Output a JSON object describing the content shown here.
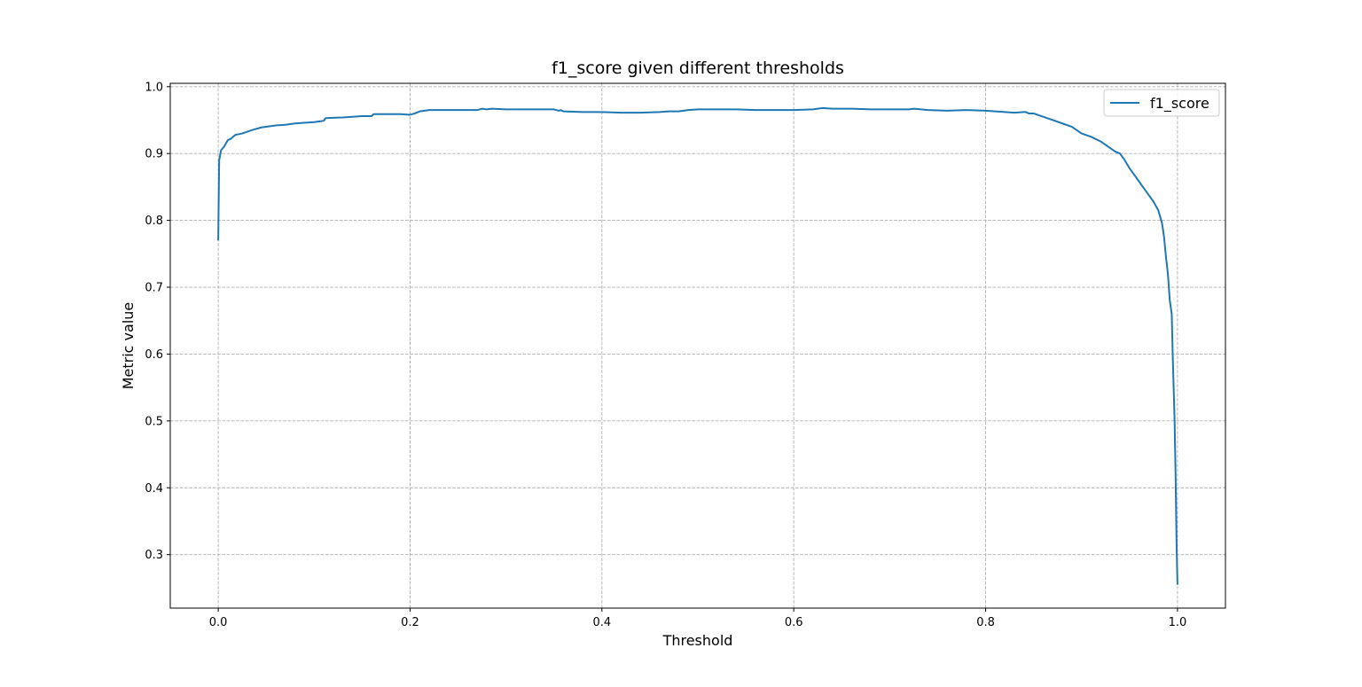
{
  "chart_data": {
    "type": "line",
    "title": "f1_score given different thresholds",
    "xlabel": "Threshold",
    "ylabel": "Metric value",
    "xlim": [
      -0.05,
      1.05
    ],
    "ylim": [
      0.22,
      1.005
    ],
    "xticks": [
      0.0,
      0.2,
      0.4,
      0.6,
      0.8,
      1.0
    ],
    "xtick_labels": [
      "0.0",
      "0.2",
      "0.4",
      "0.6",
      "0.8",
      "1.0"
    ],
    "yticks": [
      0.3,
      0.4,
      0.5,
      0.6,
      0.7,
      0.8,
      0.9,
      1.0
    ],
    "ytick_labels": [
      "0.3",
      "0.4",
      "0.5",
      "0.6",
      "0.7",
      "0.8",
      "0.9",
      "1.0"
    ],
    "grid": true,
    "legend_position": "top-right",
    "series": [
      {
        "name": "f1_score",
        "color": "#1f77b4",
        "x": [
          0.0,
          0.001,
          0.003,
          0.006,
          0.01,
          0.013,
          0.018,
          0.025,
          0.035,
          0.045,
          0.06,
          0.07,
          0.08,
          0.09,
          0.1,
          0.11,
          0.112,
          0.13,
          0.15,
          0.16,
          0.162,
          0.17,
          0.19,
          0.2,
          0.205,
          0.21,
          0.215,
          0.22,
          0.25,
          0.27,
          0.275,
          0.28,
          0.285,
          0.3,
          0.32,
          0.34,
          0.35,
          0.355,
          0.357,
          0.36,
          0.38,
          0.4,
          0.42,
          0.44,
          0.46,
          0.47,
          0.48,
          0.49,
          0.5,
          0.52,
          0.54,
          0.56,
          0.58,
          0.6,
          0.62,
          0.63,
          0.64,
          0.66,
          0.68,
          0.7,
          0.72,
          0.725,
          0.74,
          0.76,
          0.78,
          0.8,
          0.81,
          0.82,
          0.83,
          0.84,
          0.842,
          0.845,
          0.85,
          0.86,
          0.87,
          0.88,
          0.89,
          0.9,
          0.91,
          0.92,
          0.93,
          0.935,
          0.94,
          0.945,
          0.95,
          0.955,
          0.96,
          0.965,
          0.97,
          0.975,
          0.98,
          0.982,
          0.984,
          0.986,
          0.988,
          0.99,
          0.992,
          0.994,
          0.995,
          0.996,
          0.997,
          0.998,
          0.999,
          1.0
        ],
        "y": [
          0.77,
          0.89,
          0.905,
          0.91,
          0.92,
          0.922,
          0.928,
          0.93,
          0.935,
          0.939,
          0.942,
          0.943,
          0.945,
          0.946,
          0.947,
          0.949,
          0.953,
          0.954,
          0.956,
          0.956,
          0.959,
          0.959,
          0.959,
          0.958,
          0.96,
          0.963,
          0.964,
          0.965,
          0.965,
          0.965,
          0.967,
          0.966,
          0.967,
          0.966,
          0.966,
          0.966,
          0.966,
          0.964,
          0.965,
          0.963,
          0.962,
          0.962,
          0.961,
          0.961,
          0.962,
          0.963,
          0.963,
          0.965,
          0.966,
          0.966,
          0.966,
          0.965,
          0.965,
          0.965,
          0.966,
          0.968,
          0.967,
          0.967,
          0.966,
          0.966,
          0.966,
          0.967,
          0.965,
          0.964,
          0.965,
          0.964,
          0.963,
          0.962,
          0.961,
          0.962,
          0.962,
          0.96,
          0.96,
          0.955,
          0.95,
          0.945,
          0.94,
          0.93,
          0.925,
          0.918,
          0.908,
          0.903,
          0.9,
          0.89,
          0.878,
          0.868,
          0.858,
          0.848,
          0.838,
          0.828,
          0.815,
          0.805,
          0.795,
          0.775,
          0.745,
          0.72,
          0.68,
          0.66,
          0.6,
          0.55,
          0.5,
          0.42,
          0.32,
          0.255
        ]
      }
    ]
  }
}
